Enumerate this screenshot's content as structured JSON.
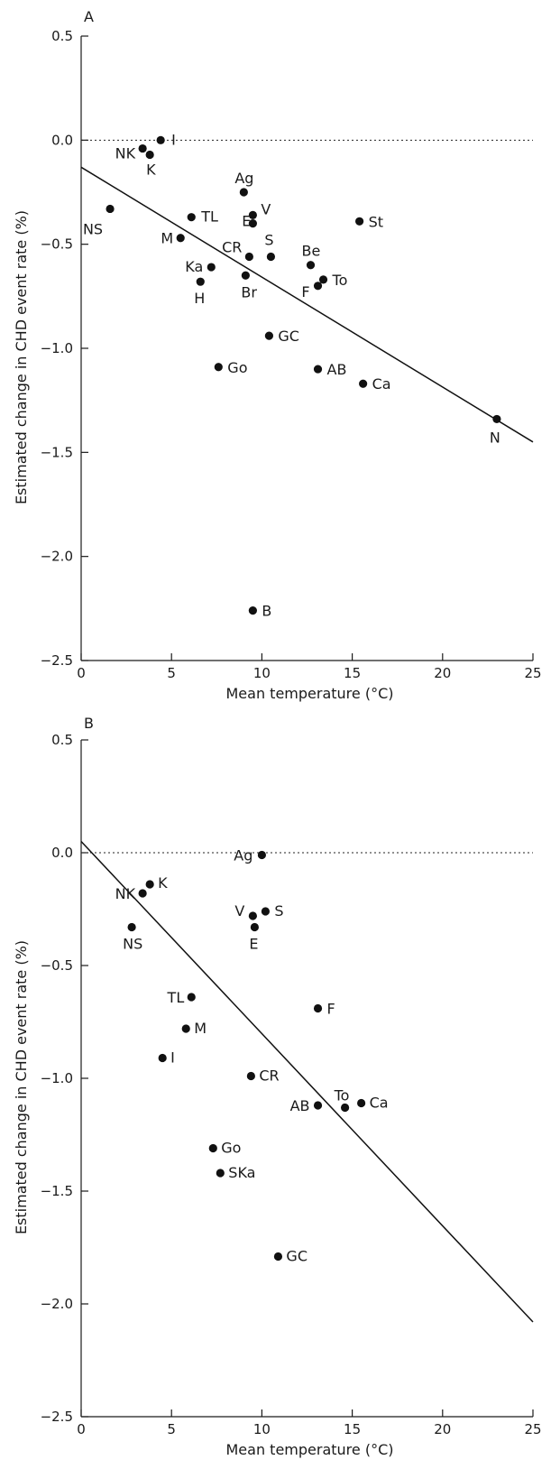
{
  "chart_data": [
    {
      "type": "scatter",
      "title": "A",
      "xlabel": "Mean temperature (°C)",
      "ylabel": "Estimated change in CHD event rate (%)",
      "xlim": [
        0,
        25
      ],
      "ylim": [
        -2.5,
        0.5
      ],
      "x_ticks": [
        "0",
        "5",
        "10",
        "15",
        "20",
        "25"
      ],
      "y_ticks": [
        "0.5",
        "0.0",
        "−0.5",
        "−1.0",
        "−1.5",
        "−2.0",
        "−2.5"
      ],
      "reference_line_y": 0.0,
      "trend_line": [
        [
          0,
          -0.13
        ],
        [
          25,
          -1.45
        ]
      ],
      "points": [
        {
          "label": "I",
          "x": 4.4,
          "y": 0.0
        },
        {
          "label": "NK",
          "x": 3.4,
          "y": -0.04
        },
        {
          "label": "K",
          "x": 3.8,
          "y": -0.07
        },
        {
          "label": "NS",
          "x": 1.6,
          "y": -0.33
        },
        {
          "label": "TL",
          "x": 6.1,
          "y": -0.37
        },
        {
          "label": "M",
          "x": 5.5,
          "y": -0.47
        },
        {
          "label": "Ka",
          "x": 7.2,
          "y": -0.61
        },
        {
          "label": "H",
          "x": 6.6,
          "y": -0.68
        },
        {
          "label": "Ag",
          "x": 9.0,
          "y": -0.25
        },
        {
          "label": "V",
          "x": 9.5,
          "y": -0.36
        },
        {
          "label": "E",
          "x": 9.5,
          "y": -0.4
        },
        {
          "label": "CR",
          "x": 9.3,
          "y": -0.56
        },
        {
          "label": "S",
          "x": 10.5,
          "y": -0.56
        },
        {
          "label": "Br",
          "x": 9.1,
          "y": -0.65
        },
        {
          "label": "Be",
          "x": 12.7,
          "y": -0.6
        },
        {
          "label": "To",
          "x": 13.4,
          "y": -0.67
        },
        {
          "label": "F",
          "x": 13.1,
          "y": -0.7
        },
        {
          "label": "St",
          "x": 15.4,
          "y": -0.39
        },
        {
          "label": "GC",
          "x": 10.4,
          "y": -0.94
        },
        {
          "label": "Go",
          "x": 7.6,
          "y": -1.09
        },
        {
          "label": "AB",
          "x": 13.1,
          "y": -1.1
        },
        {
          "label": "Ca",
          "x": 15.6,
          "y": -1.17
        },
        {
          "label": "N",
          "x": 23.0,
          "y": -1.34
        },
        {
          "label": "B",
          "x": 9.5,
          "y": -2.26
        }
      ]
    },
    {
      "type": "scatter",
      "title": "B",
      "xlabel": "Mean temperature (°C)",
      "ylabel": "Estimated change in CHD event rate (%)",
      "xlim": [
        0,
        25
      ],
      "ylim": [
        -2.5,
        0.5
      ],
      "x_ticks": [
        "0",
        "5",
        "10",
        "15",
        "20",
        "25"
      ],
      "y_ticks": [
        "0.5",
        "0.0",
        "−0.5",
        "−1.0",
        "−1.5",
        "−2.0",
        "−2.5"
      ],
      "reference_line_y": 0.0,
      "trend_line": [
        [
          0,
          0.05
        ],
        [
          25,
          -2.08
        ]
      ],
      "points": [
        {
          "label": "Ag",
          "x": 10.0,
          "y": -0.01
        },
        {
          "label": "K",
          "x": 3.8,
          "y": -0.14
        },
        {
          "label": "NK",
          "x": 3.4,
          "y": -0.18
        },
        {
          "label": "NS",
          "x": 2.8,
          "y": -0.33
        },
        {
          "label": "V",
          "x": 9.5,
          "y": -0.28
        },
        {
          "label": "S",
          "x": 10.2,
          "y": -0.26
        },
        {
          "label": "E",
          "x": 9.6,
          "y": -0.33
        },
        {
          "label": "TL",
          "x": 6.1,
          "y": -0.64
        },
        {
          "label": "M",
          "x": 5.8,
          "y": -0.78
        },
        {
          "label": "F",
          "x": 13.1,
          "y": -0.69
        },
        {
          "label": "I",
          "x": 4.5,
          "y": -0.91
        },
        {
          "label": "CR",
          "x": 9.4,
          "y": -0.99
        },
        {
          "label": "AB",
          "x": 13.1,
          "y": -1.12
        },
        {
          "label": "To",
          "x": 14.6,
          "y": -1.13
        },
        {
          "label": "Ca",
          "x": 15.5,
          "y": -1.11
        },
        {
          "label": "Go",
          "x": 7.3,
          "y": -1.31
        },
        {
          "label": "SKa",
          "x": 7.7,
          "y": -1.42
        },
        {
          "label": "GC",
          "x": 10.9,
          "y": -1.79
        }
      ]
    }
  ]
}
